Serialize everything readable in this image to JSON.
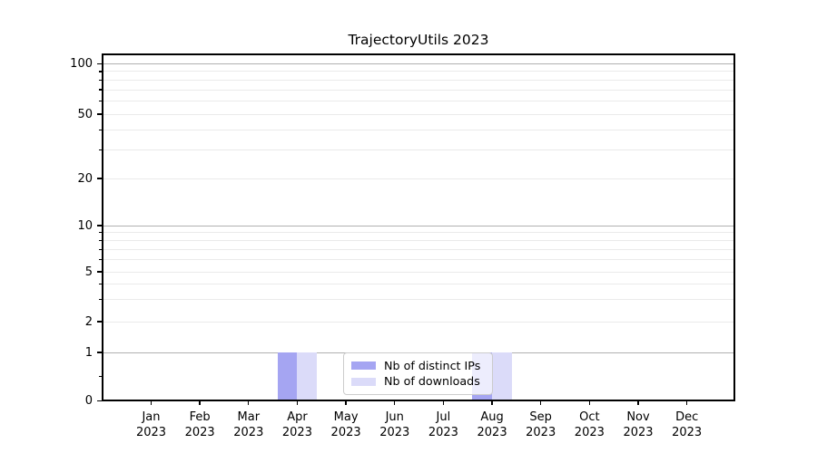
{
  "figure": {
    "background": "#ffffff"
  },
  "chart_data": {
    "type": "bar",
    "title": "TrajectoryUtils 2023",
    "categories": [
      "Jan 2023",
      "Feb 2023",
      "Mar 2023",
      "Apr 2023",
      "May 2023",
      "Jun 2023",
      "Jul 2023",
      "Aug 2023",
      "Sep 2023",
      "Oct 2023",
      "Nov 2023",
      "Dec 2023"
    ],
    "x_axis": {
      "months": [
        "Jan",
        "Feb",
        "Mar",
        "Apr",
        "May",
        "Jun",
        "Jul",
        "Aug",
        "Sep",
        "Oct",
        "Nov",
        "Dec"
      ],
      "year_line": "2023"
    },
    "series": [
      {
        "name": "Nb of distinct IPs",
        "color": "#a5a5f2",
        "values": [
          0,
          0,
          0,
          1,
          0,
          0,
          0,
          1,
          0,
          0,
          0,
          0
        ]
      },
      {
        "name": "Nb of downloads",
        "color": "#dbdbf9",
        "values": [
          0,
          0,
          0,
          1,
          0,
          0,
          0,
          1,
          0,
          0,
          0,
          0
        ]
      }
    ],
    "y_axis": {
      "scale": "symlog",
      "major_tick_values": [
        0,
        1,
        2,
        5,
        10,
        20,
        50,
        100
      ],
      "labeled_tick_values": [
        0,
        1,
        2,
        5,
        10,
        20,
        50,
        100
      ],
      "decade_grid_values": [
        1,
        10,
        100
      ],
      "minor_tick_values": [
        0.5,
        3,
        4,
        6,
        7,
        8,
        9,
        30,
        40,
        60,
        70,
        80,
        90
      ],
      "range": [
        0,
        110
      ]
    },
    "grid": {
      "major_color": "#b0b0b0",
      "minor_color": "#eaeaea",
      "orientation": "horizontal"
    },
    "legend": {
      "position": "lower-center-inside",
      "entries": [
        "Nb of distinct IPs",
        "Nb of downloads"
      ]
    }
  }
}
